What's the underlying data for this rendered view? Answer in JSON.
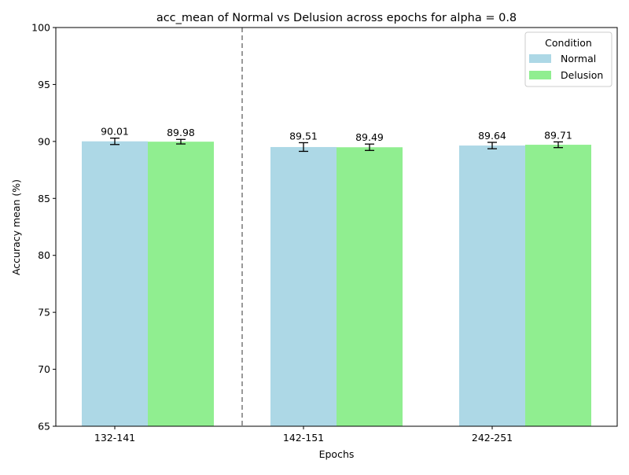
{
  "chart_data": {
    "type": "bar",
    "title": "acc_mean of Normal vs Delusion across epochs for alpha = 0.8",
    "xlabel": "Epochs",
    "ylabel": "Accuracy mean (%)",
    "ylim": [
      65,
      100
    ],
    "yticks": [
      65,
      70,
      75,
      80,
      85,
      90,
      95,
      100
    ],
    "grid": false,
    "categories": [
      "132-141",
      "142-151",
      "242-251"
    ],
    "series": [
      {
        "name": "Normal",
        "color": "#add8e6",
        "values": [
          90.01,
          89.51,
          89.64
        ],
        "errors": [
          0.28,
          0.38,
          0.28
        ],
        "value_labels": [
          "90.01",
          "89.51",
          "89.64"
        ]
      },
      {
        "name": "Delusion",
        "color": "#90ee90",
        "values": [
          89.98,
          89.49,
          89.71
        ],
        "errors": [
          0.2,
          0.28,
          0.25
        ],
        "value_labels": [
          "89.98",
          "89.49",
          "89.71"
        ]
      }
    ],
    "separator_line": {
      "after_category_index": 0,
      "style": "dashed",
      "color": "#808080"
    },
    "legend": {
      "title": "Condition",
      "placement": "top-right"
    }
  }
}
